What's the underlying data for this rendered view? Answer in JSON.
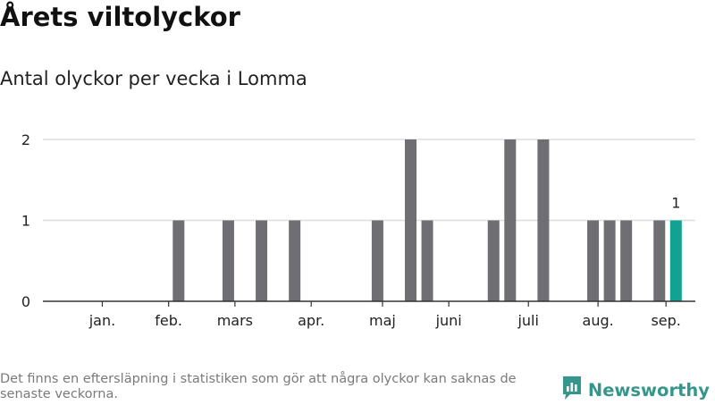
{
  "header": {
    "title": "Årets viltolyckor",
    "subtitle": "Antal olyckor per vecka i Lomma"
  },
  "footer": {
    "note": "Det finns en eftersläpning i statistiken som gör att några olyckor kan saknas de senaste veckorna.",
    "brand": "Newsworthy"
  },
  "colors": {
    "bar": "#6f6e72",
    "highlight": "#11a294",
    "grid": "#dedede",
    "axis": "#333333",
    "brand": "#37968c"
  },
  "chart_data": {
    "type": "bar",
    "title": "Antal olyckor per vecka i Lomma",
    "xlabel": "",
    "ylabel": "",
    "ylim": [
      0,
      2
    ],
    "yticks": [
      0,
      1,
      2
    ],
    "grid": true,
    "x_unit": "vecka",
    "weeks": [
      1,
      2,
      3,
      4,
      5,
      6,
      7,
      8,
      9,
      10,
      11,
      12,
      13,
      14,
      15,
      16,
      17,
      18,
      19,
      20,
      21,
      22,
      23,
      24,
      25,
      26,
      27,
      28,
      29,
      30,
      31,
      32,
      33,
      34,
      35,
      36,
      37,
      38
    ],
    "values": [
      0,
      0,
      0,
      0,
      0,
      0,
      1,
      0,
      0,
      1,
      0,
      1,
      0,
      1,
      0,
      0,
      0,
      0,
      1,
      0,
      2,
      1,
      0,
      0,
      0,
      1,
      2,
      0,
      2,
      0,
      0,
      1,
      1,
      1,
      0,
      1,
      1,
      0
    ],
    "highlight_index": 36,
    "highlight_label": "1",
    "month_labels": [
      {
        "label": "jan.",
        "week": 2.4
      },
      {
        "label": "feb.",
        "week": 6.4
      },
      {
        "label": "mars",
        "week": 10.4
      },
      {
        "label": "apr.",
        "week": 15.0
      },
      {
        "label": "maj",
        "week": 19.3
      },
      {
        "label": "juni",
        "week": 23.3
      },
      {
        "label": "juli",
        "week": 28.1
      },
      {
        "label": "aug.",
        "week": 32.3
      },
      {
        "label": "sep.",
        "week": 36.4
      }
    ]
  }
}
